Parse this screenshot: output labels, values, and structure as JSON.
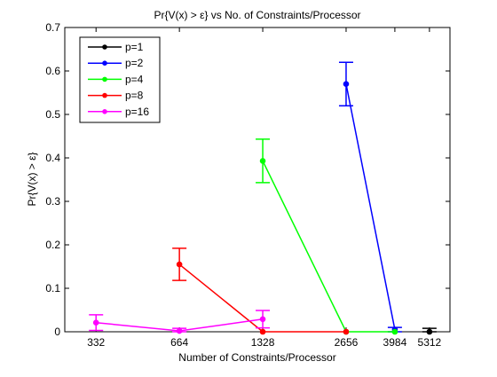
{
  "chart_data": {
    "type": "line",
    "title": "Pr{V(x) > ε} vs No. of Constraints/Processor",
    "xlabel": "Number of Constraints/Processor",
    "ylabel": "Pr{V(x) > ε}",
    "x_scale": "log2",
    "xlim": [
      256,
      6300
    ],
    "ylim": [
      0,
      0.7
    ],
    "x_ticks": [
      332,
      664,
      1328,
      2656,
      3984,
      5312
    ],
    "y_ticks": [
      0,
      0.1,
      0.2,
      0.3,
      0.4,
      0.5,
      0.6,
      0.7
    ],
    "grid": false,
    "legend_position": "top-left",
    "series": [
      {
        "name": "p=1",
        "color": "#000000",
        "points": [
          {
            "x": 5312,
            "y": 0,
            "err": 0.008
          }
        ]
      },
      {
        "name": "p=2",
        "color": "#0000ff",
        "points": [
          {
            "x": 2656,
            "y": 0.57,
            "err": 0.05
          },
          {
            "x": 3984,
            "y": 0.005,
            "err": 0.005
          }
        ]
      },
      {
        "name": "p=4",
        "color": "#00ff00",
        "points": [
          {
            "x": 1328,
            "y": 0.393,
            "err": 0.05
          },
          {
            "x": 2656,
            "y": 0,
            "err": 0
          },
          {
            "x": 3984,
            "y": 0,
            "err": 0
          }
        ]
      },
      {
        "name": "p=8",
        "color": "#ff0000",
        "points": [
          {
            "x": 664,
            "y": 0.155,
            "err": 0.037
          },
          {
            "x": 1328,
            "y": 0,
            "err": 0
          },
          {
            "x": 2656,
            "y": 0,
            "err": 0
          }
        ]
      },
      {
        "name": "p=16",
        "color": "#ff00ff",
        "points": [
          {
            "x": 332,
            "y": 0.021,
            "err": 0.018
          },
          {
            "x": 664,
            "y": 0.002,
            "err": 0.006
          },
          {
            "x": 1328,
            "y": 0.029,
            "err": 0.02
          }
        ]
      }
    ]
  }
}
